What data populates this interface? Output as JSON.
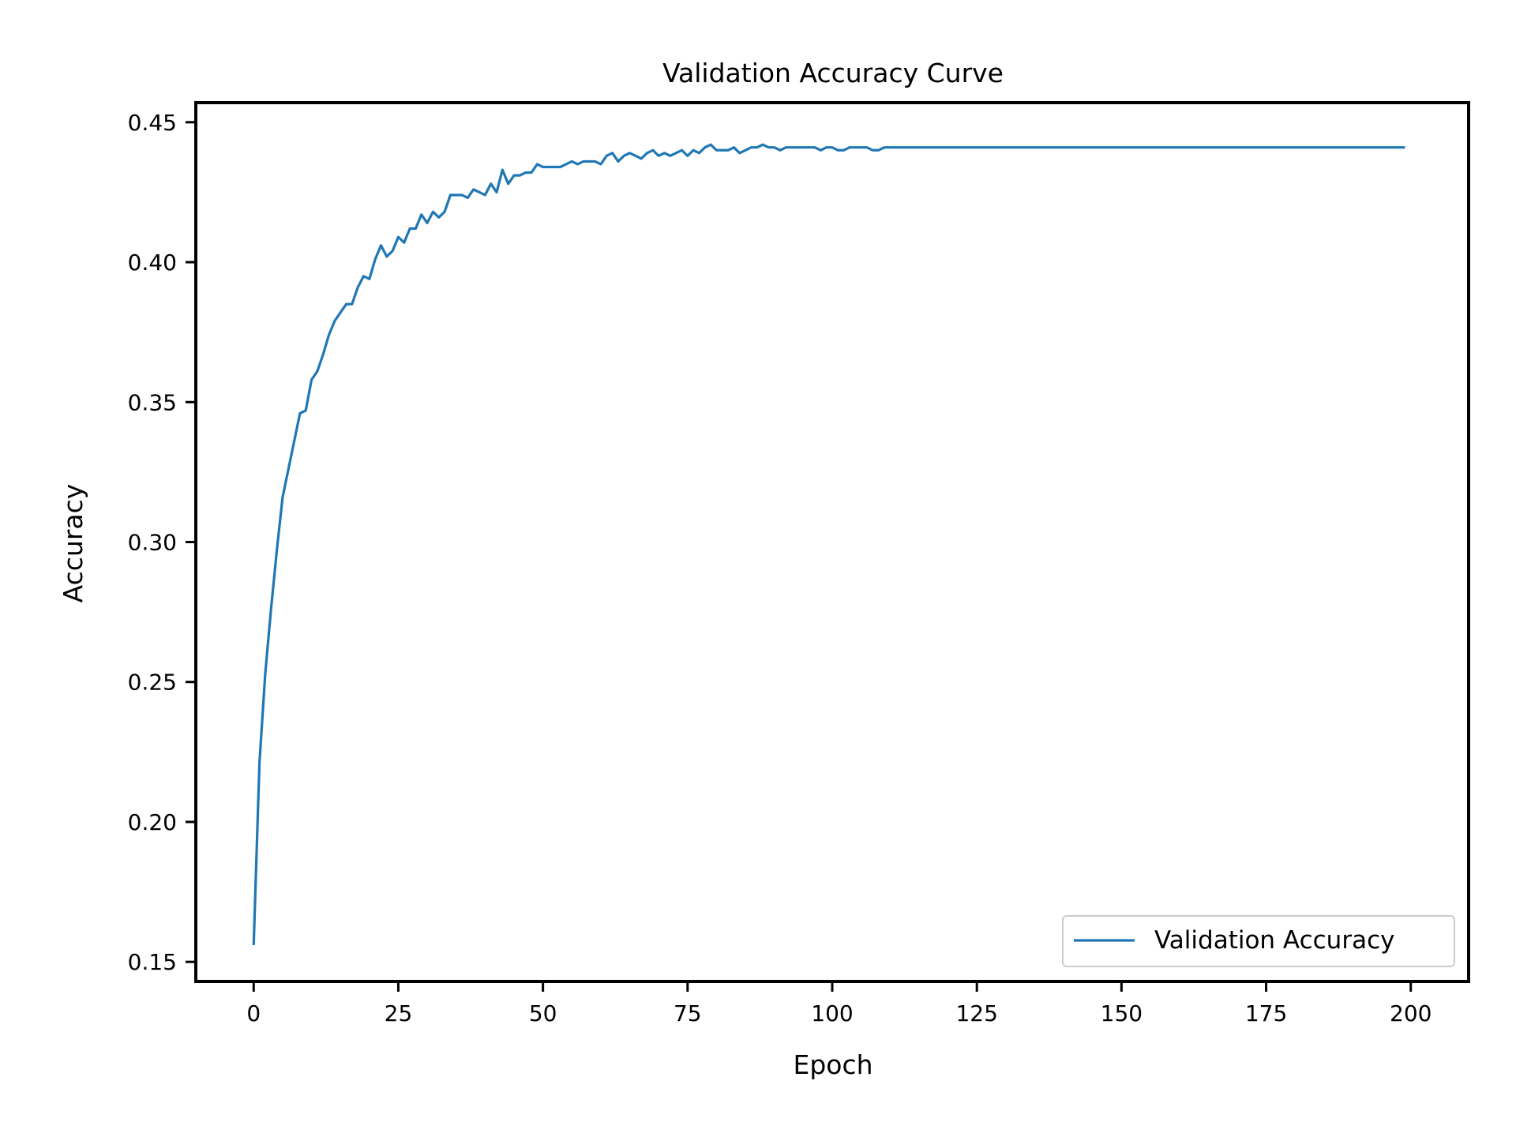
{
  "chart_data": {
    "type": "line",
    "title": "Validation Accuracy Curve",
    "xlabel": "Epoch",
    "ylabel": "Accuracy",
    "xlim": [
      -10,
      210
    ],
    "ylim": [
      0.143,
      0.457
    ],
    "x_ticks": [
      0,
      25,
      50,
      75,
      100,
      125,
      150,
      175,
      200
    ],
    "y_ticks": [
      0.15,
      0.2,
      0.25,
      0.3,
      0.35,
      0.4,
      0.45
    ],
    "x_tick_labels": [
      "0",
      "25",
      "50",
      "75",
      "100",
      "125",
      "150",
      "175",
      "200"
    ],
    "y_tick_labels": [
      "0.15",
      "0.20",
      "0.25",
      "0.30",
      "0.35",
      "0.40",
      "0.45"
    ],
    "grid": false,
    "legend_position": "lower-right",
    "series": [
      {
        "name": "Validation Accuracy",
        "color": "#1f77b4",
        "points": [
          [
            0,
            0.156
          ],
          [
            1,
            0.221
          ],
          [
            2,
            0.253
          ],
          [
            3,
            0.276
          ],
          [
            4,
            0.297
          ],
          [
            5,
            0.316
          ],
          [
            6,
            0.326
          ],
          [
            7,
            0.336
          ],
          [
            8,
            0.346
          ],
          [
            9,
            0.347
          ],
          [
            10,
            0.358
          ],
          [
            11,
            0.361
          ],
          [
            12,
            0.367
          ],
          [
            13,
            0.374
          ],
          [
            14,
            0.379
          ],
          [
            15,
            0.382
          ],
          [
            16,
            0.385
          ],
          [
            17,
            0.385
          ],
          [
            18,
            0.391
          ],
          [
            19,
            0.395
          ],
          [
            20,
            0.394
          ],
          [
            21,
            0.401
          ],
          [
            22,
            0.406
          ],
          [
            23,
            0.402
          ],
          [
            24,
            0.404
          ],
          [
            25,
            0.409
          ],
          [
            26,
            0.407
          ],
          [
            27,
            0.412
          ],
          [
            28,
            0.412
          ],
          [
            29,
            0.417
          ],
          [
            30,
            0.414
          ],
          [
            31,
            0.418
          ],
          [
            32,
            0.416
          ],
          [
            33,
            0.418
          ],
          [
            34,
            0.424
          ],
          [
            35,
            0.424
          ],
          [
            36,
            0.424
          ],
          [
            37,
            0.423
          ],
          [
            38,
            0.426
          ],
          [
            39,
            0.425
          ],
          [
            40,
            0.424
          ],
          [
            41,
            0.428
          ],
          [
            42,
            0.425
          ],
          [
            43,
            0.433
          ],
          [
            44,
            0.428
          ],
          [
            45,
            0.431
          ],
          [
            46,
            0.431
          ],
          [
            47,
            0.432
          ],
          [
            48,
            0.432
          ],
          [
            49,
            0.435
          ],
          [
            50,
            0.434
          ],
          [
            51,
            0.434
          ],
          [
            52,
            0.434
          ],
          [
            53,
            0.434
          ],
          [
            54,
            0.435
          ],
          [
            55,
            0.436
          ],
          [
            56,
            0.435
          ],
          [
            57,
            0.436
          ],
          [
            58,
            0.436
          ],
          [
            59,
            0.436
          ],
          [
            60,
            0.435
          ],
          [
            61,
            0.438
          ],
          [
            62,
            0.439
          ],
          [
            63,
            0.436
          ],
          [
            64,
            0.438
          ],
          [
            65,
            0.439
          ],
          [
            66,
            0.438
          ],
          [
            67,
            0.437
          ],
          [
            68,
            0.439
          ],
          [
            69,
            0.44
          ],
          [
            70,
            0.438
          ],
          [
            71,
            0.439
          ],
          [
            72,
            0.438
          ],
          [
            73,
            0.439
          ],
          [
            74,
            0.44
          ],
          [
            75,
            0.438
          ],
          [
            76,
            0.44
          ],
          [
            77,
            0.439
          ],
          [
            78,
            0.441
          ],
          [
            79,
            0.442
          ],
          [
            80,
            0.44
          ],
          [
            81,
            0.44
          ],
          [
            82,
            0.44
          ],
          [
            83,
            0.441
          ],
          [
            84,
            0.439
          ],
          [
            85,
            0.44
          ],
          [
            86,
            0.441
          ],
          [
            87,
            0.441
          ],
          [
            88,
            0.442
          ],
          [
            89,
            0.441
          ],
          [
            90,
            0.441
          ],
          [
            91,
            0.44
          ],
          [
            92,
            0.441
          ],
          [
            93,
            0.441
          ],
          [
            94,
            0.441
          ],
          [
            95,
            0.441
          ],
          [
            96,
            0.441
          ],
          [
            97,
            0.441
          ],
          [
            98,
            0.44
          ],
          [
            99,
            0.441
          ],
          [
            100,
            0.441
          ],
          [
            101,
            0.44
          ],
          [
            102,
            0.44
          ],
          [
            103,
            0.441
          ],
          [
            104,
            0.441
          ],
          [
            105,
            0.441
          ],
          [
            106,
            0.441
          ],
          [
            107,
            0.44
          ],
          [
            108,
            0.44
          ],
          [
            109,
            0.441
          ],
          [
            110,
            0.441
          ],
          [
            111,
            0.441
          ],
          [
            112,
            0.441
          ],
          [
            113,
            0.441
          ],
          [
            114,
            0.441
          ],
          [
            115,
            0.441
          ],
          [
            116,
            0.441
          ],
          [
            117,
            0.441
          ],
          [
            118,
            0.441
          ],
          [
            119,
            0.441
          ],
          [
            120,
            0.441
          ],
          [
            122,
            0.441
          ],
          [
            124,
            0.441
          ],
          [
            126,
            0.441
          ],
          [
            128,
            0.441
          ],
          [
            130,
            0.441
          ],
          [
            132,
            0.441
          ],
          [
            134,
            0.441
          ],
          [
            136,
            0.441
          ],
          [
            138,
            0.441
          ],
          [
            140,
            0.441
          ],
          [
            142,
            0.441
          ],
          [
            144,
            0.441
          ],
          [
            146,
            0.441
          ],
          [
            148,
            0.441
          ],
          [
            150,
            0.441
          ],
          [
            152,
            0.441
          ],
          [
            154,
            0.441
          ],
          [
            156,
            0.441
          ],
          [
            158,
            0.441
          ],
          [
            160,
            0.441
          ],
          [
            165,
            0.441
          ],
          [
            170,
            0.441
          ],
          [
            175,
            0.441
          ],
          [
            180,
            0.441
          ],
          [
            185,
            0.441
          ],
          [
            190,
            0.441
          ],
          [
            195,
            0.441
          ],
          [
            199,
            0.441
          ]
        ]
      }
    ]
  }
}
